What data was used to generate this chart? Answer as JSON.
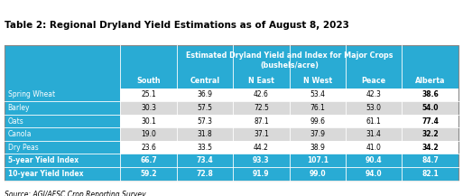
{
  "title": "Table 2: Regional Dryland Yield Estimations as of August 8, 2023",
  "subtitle1": "Estimated Dryland Yield and Index for Major Crops",
  "subtitle2": "(bushels/acre)",
  "source": "Source: AGI/AFSC Crop Reporting Survey",
  "col_headers": [
    "South",
    "Central",
    "N East",
    "N West",
    "Peace",
    "Alberta"
  ],
  "row_labels": [
    "Spring Wheat",
    "Barley",
    "Oats",
    "Canola",
    "Dry Peas",
    "5-year Yield Index",
    "10-year Yield Index"
  ],
  "data": [
    [
      25.1,
      36.9,
      42.6,
      53.4,
      42.3,
      38.6
    ],
    [
      30.3,
      57.5,
      72.5,
      76.1,
      53.0,
      54.0
    ],
    [
      30.1,
      57.3,
      87.1,
      99.6,
      61.1,
      77.4
    ],
    [
      19.0,
      31.8,
      37.1,
      37.9,
      31.4,
      32.2
    ],
    [
      23.6,
      33.5,
      44.2,
      38.9,
      41.0,
      34.2
    ],
    [
      66.7,
      73.4,
      93.3,
      107.1,
      90.4,
      84.7
    ],
    [
      59.2,
      72.8,
      91.9,
      99.0,
      94.0,
      82.1
    ]
  ],
  "header_bg": "#29ABD4",
  "row_label_bg": "#29ABD4",
  "row_label_text": "#FFFFFF",
  "alt_row_bg": "#D9D9D9",
  "white_row_bg": "#FFFFFF",
  "index_row_bg": "#29ABD4",
  "index_row_text": "#FFFFFF",
  "header_text": "#FFFFFF",
  "data_text_normal": "#000000",
  "border_color": "#FFFFFF",
  "title_color": "#000000",
  "source_color": "#000000"
}
